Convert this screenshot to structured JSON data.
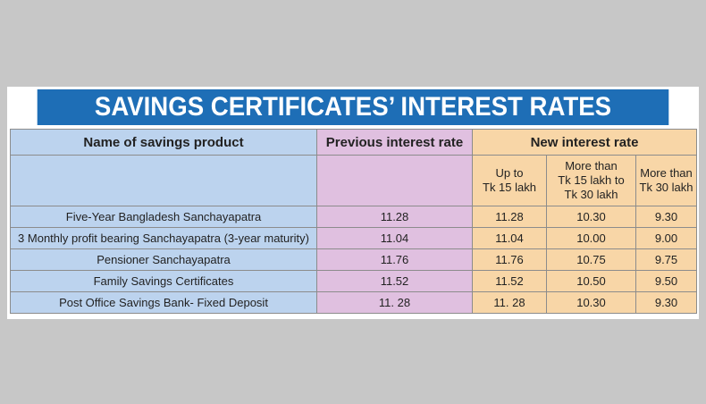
{
  "title": "SAVINGS CERTIFICATES’ INTEREST RATES",
  "headers": {
    "name": "Name of savings product",
    "previous": "Previous interest rate",
    "new": "New interest rate",
    "sub": [
      "Up to\nTk 15 lakh",
      "More than\nTk 15 lakh to\nTk 30 lakh",
      "More than\nTk 30 lakh"
    ]
  },
  "rows": [
    {
      "name": "Five-Year Bangladesh Sanchayapatra",
      "previous": "11.28",
      "up15": "11.28",
      "mid": "10.30",
      "over30": "9.30"
    },
    {
      "name": "3 Monthly profit bearing Sanchayapatra (3-year maturity)",
      "previous": "11.04",
      "up15": "11.04",
      "mid": "10.00",
      "over30": "9.00"
    },
    {
      "name": "Pensioner Sanchayapatra",
      "previous": "11.76",
      "up15": "11.76",
      "mid": "10.75",
      "over30": "9.75"
    },
    {
      "name": "Family Savings Certificates",
      "previous": "11.52",
      "up15": "11.52",
      "mid": "10.50",
      "over30": "9.50"
    },
    {
      "name": "Post Office Savings Bank- Fixed Deposit",
      "previous": "11. 28",
      "up15": "11. 28",
      "mid": "10.30",
      "over30": "9.30"
    }
  ],
  "colors": {
    "title_bg": "#1e6eb6",
    "name_bg": "#bcd3ee",
    "previous_bg": "#e0c0e0",
    "new_bg": "#f8d6a7",
    "page_bg": "#c7c7c7"
  }
}
